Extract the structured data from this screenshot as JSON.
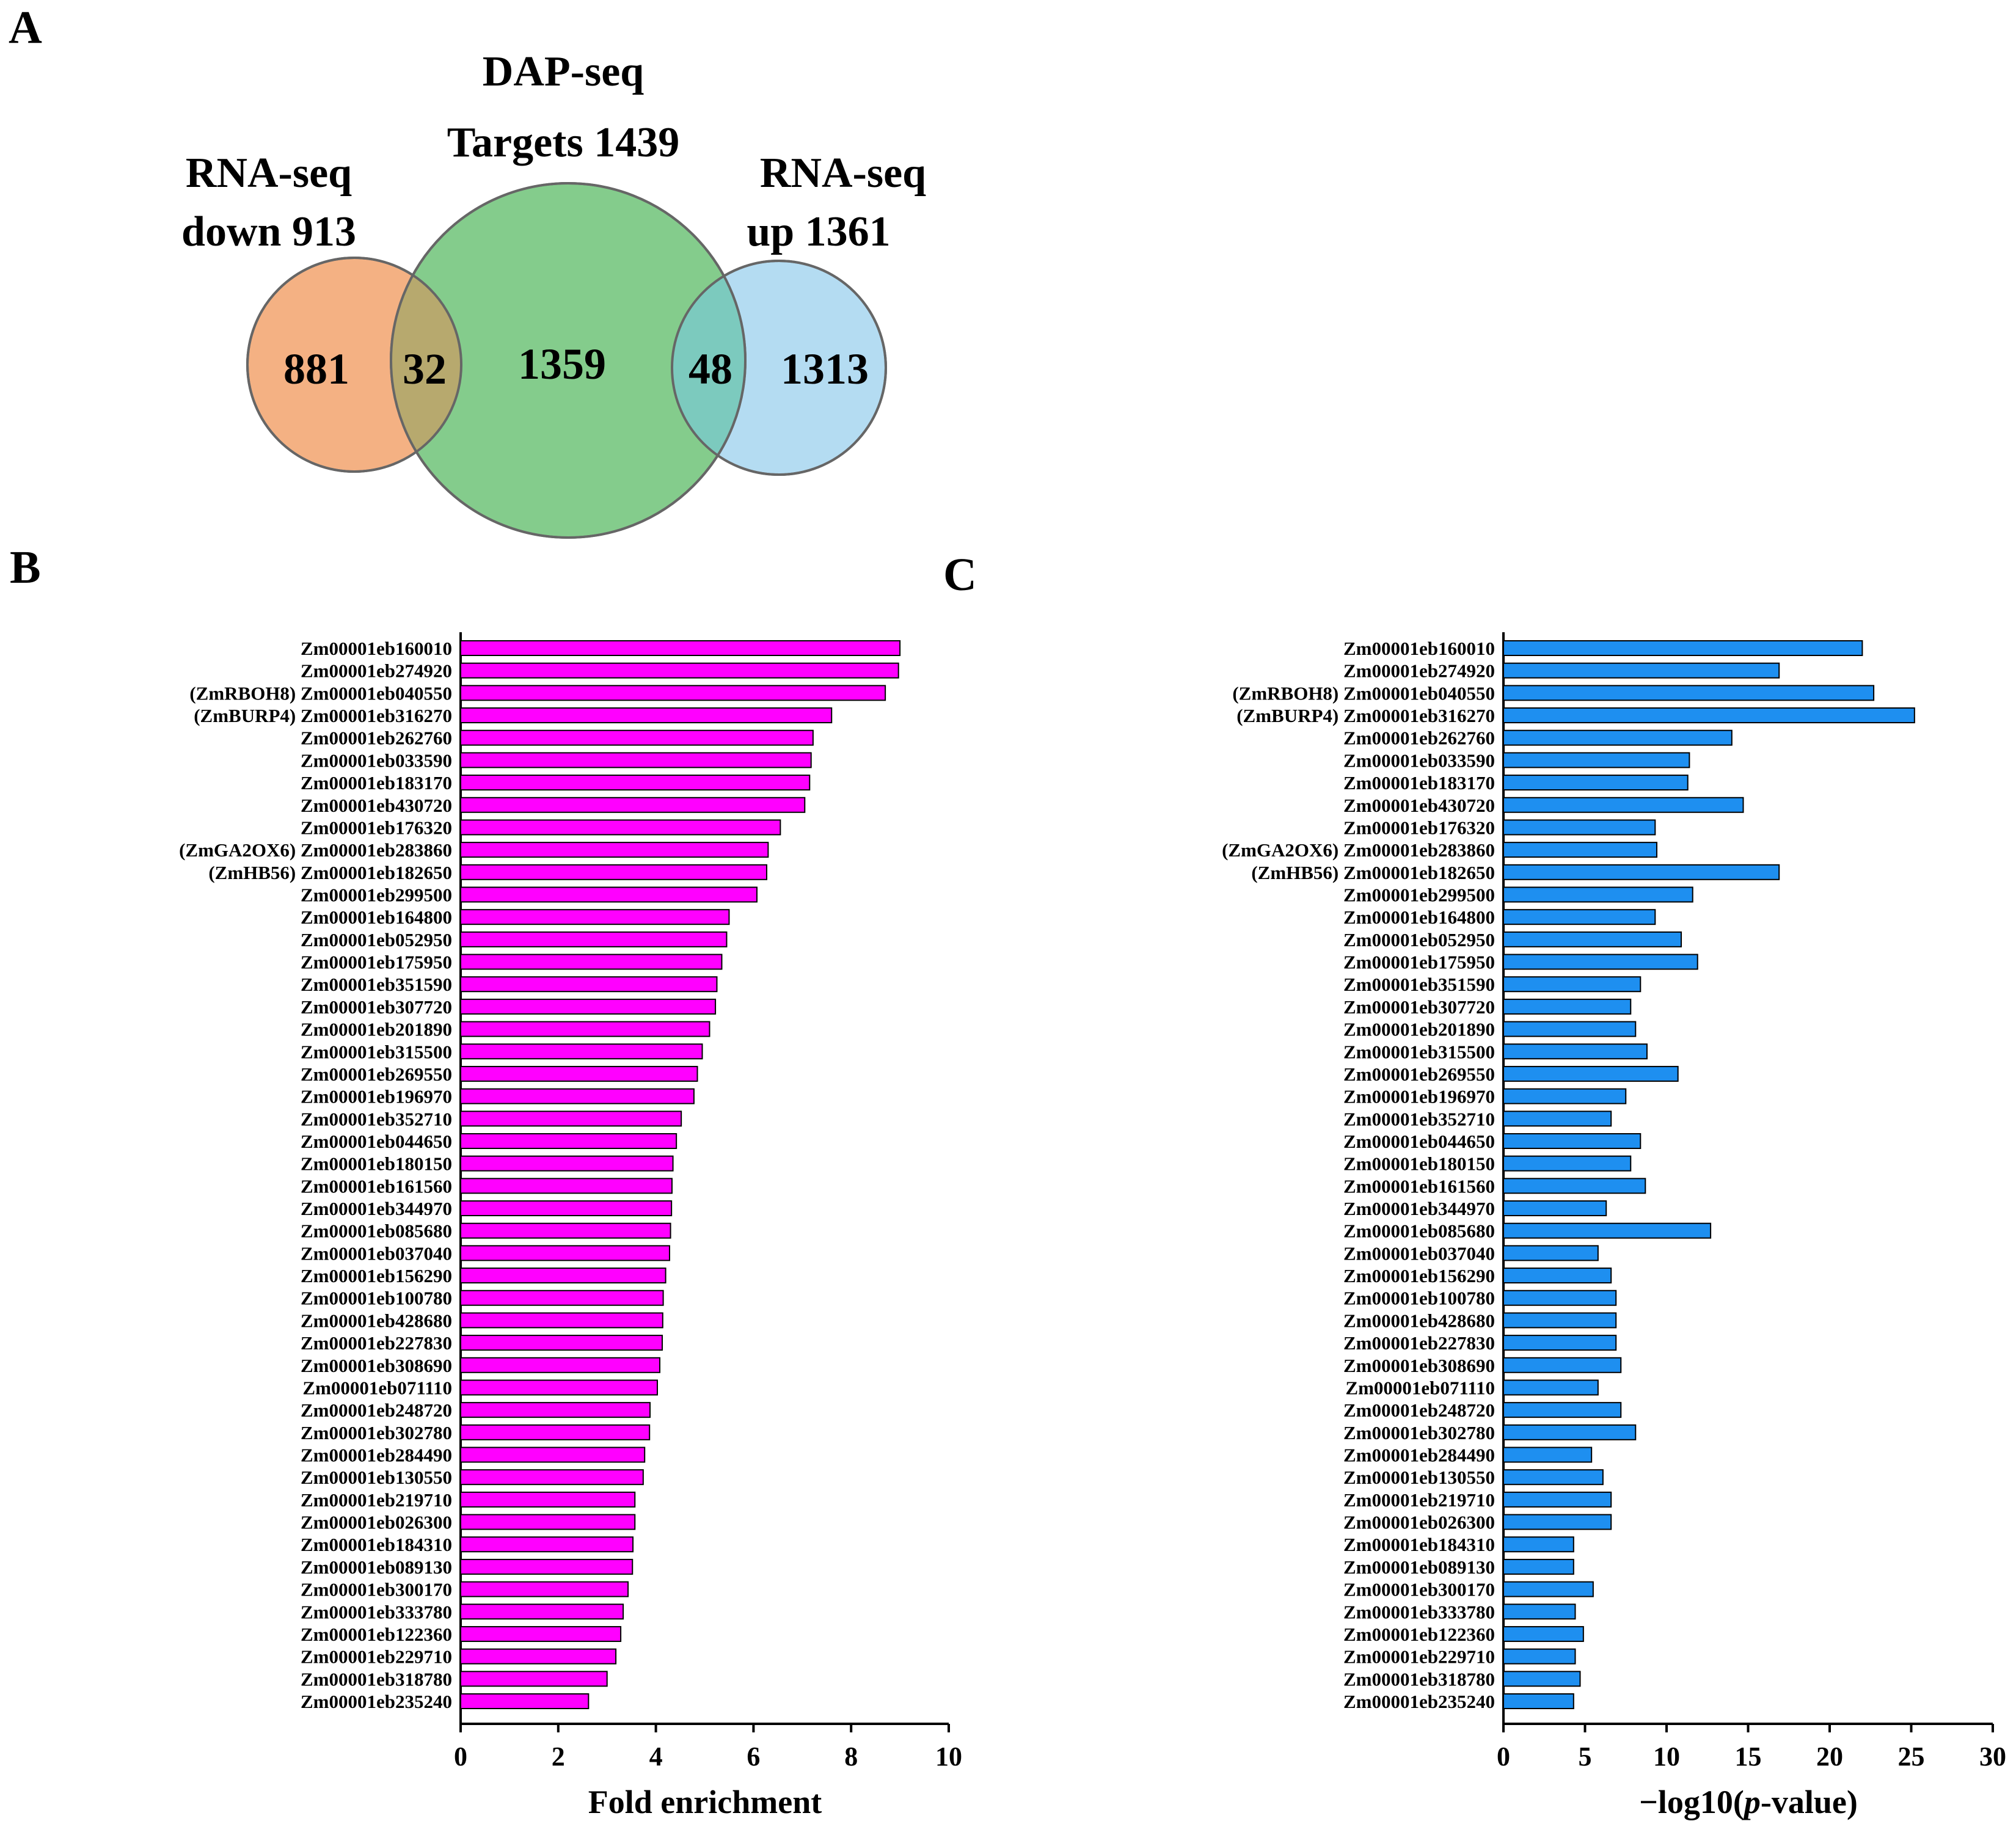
{
  "panels": {
    "a": "A",
    "b": "B",
    "c": "C"
  },
  "venn": {
    "left_title_line1": "RNA-seq",
    "left_title_line2": "down 913",
    "center_title_line1": "DAP-seq",
    "center_title_line2": "Targets 1439",
    "right_title_line1": "RNA-seq",
    "right_title_line2": "up 1361",
    "counts": {
      "down_only": "881",
      "down_and_dap": "32",
      "dap_only": "1359",
      "dap_and_up": "48",
      "up_only": "1313"
    },
    "colors": {
      "down": "#f4b183",
      "dap": "#84cc8c",
      "up": "#b4dcf2",
      "down_dap": "#b7a96e",
      "dap_up": "#7ccabe",
      "outline": "#666666"
    }
  },
  "chart_data": [
    {
      "type": "bar",
      "orientation": "horizontal",
      "title": "",
      "xlabel": "Fold enrichment",
      "ylabel": "",
      "xlim": [
        0,
        10
      ],
      "xticks": [
        0,
        2,
        4,
        6,
        8,
        10
      ],
      "color": "#ff00ff",
      "categories": [
        "Zm00001eb160010",
        "Zm00001eb274920",
        "(ZmRBOH8) Zm00001eb040550",
        "(ZmBURP4) Zm00001eb316270",
        "Zm00001eb262760",
        "Zm00001eb033590",
        "Zm00001eb183170",
        "Zm00001eb430720",
        "Zm00001eb176320",
        "(ZmGA2OX6) Zm00001eb283860",
        "(ZmHB56) Zm00001eb182650",
        "Zm00001eb299500",
        "Zm00001eb164800",
        "Zm00001eb052950",
        "Zm00001eb175950",
        "Zm00001eb351590",
        "Zm00001eb307720",
        "Zm00001eb201890",
        "Zm00001eb315500",
        "Zm00001eb269550",
        "Zm00001eb196970",
        "Zm00001eb352710",
        "Zm00001eb044650",
        "Zm00001eb180150",
        "Zm00001eb161560",
        "Zm00001eb344970",
        "Zm00001eb085680",
        "Zm00001eb037040",
        "Zm00001eb156290",
        "Zm00001eb100780",
        "Zm00001eb428680",
        "Zm00001eb227830",
        "Zm00001eb308690",
        "Zm00001eb071110",
        "Zm00001eb248720",
        "Zm00001eb302780",
        "Zm00001eb284490",
        "Zm00001eb130550",
        "Zm00001eb219710",
        "Zm00001eb026300",
        "Zm00001eb184310",
        "Zm00001eb089130",
        "Zm00001eb300170",
        "Zm00001eb333780",
        "Zm00001eb122360",
        "Zm00001eb229710",
        "Zm00001eb318780",
        "Zm00001eb235240"
      ],
      "values": [
        9.0,
        8.97,
        8.7,
        7.6,
        7.22,
        7.18,
        7.15,
        7.05,
        6.55,
        6.3,
        6.27,
        6.07,
        5.5,
        5.45,
        5.35,
        5.25,
        5.22,
        5.1,
        4.95,
        4.85,
        4.78,
        4.52,
        4.42,
        4.35,
        4.33,
        4.32,
        4.3,
        4.28,
        4.2,
        4.15,
        4.14,
        4.13,
        4.08,
        4.03,
        3.88,
        3.87,
        3.77,
        3.74,
        3.57,
        3.57,
        3.53,
        3.52,
        3.43,
        3.33,
        3.28,
        3.18,
        3.0,
        2.62
      ]
    },
    {
      "type": "bar",
      "orientation": "horizontal",
      "title": "",
      "xlabel": "−log10(p-value)",
      "xlabel_prefix": "−log10(",
      "xlabel_italic": "p",
      "xlabel_suffix": "-value)",
      "ylabel": "",
      "xlim": [
        0,
        30
      ],
      "xticks": [
        0,
        5,
        10,
        15,
        20,
        25,
        30
      ],
      "color": "#1e8ff0",
      "categories": [
        "Zm00001eb160010",
        "Zm00001eb274920",
        "(ZmRBOH8) Zm00001eb040550",
        "(ZmBURP4) Zm00001eb316270",
        "Zm00001eb262760",
        "Zm00001eb033590",
        "Zm00001eb183170",
        "Zm00001eb430720",
        "Zm00001eb176320",
        "(ZmGA2OX6) Zm00001eb283860",
        "(ZmHB56) Zm00001eb182650",
        "Zm00001eb299500",
        "Zm00001eb164800",
        "Zm00001eb052950",
        "Zm00001eb175950",
        "Zm00001eb351590",
        "Zm00001eb307720",
        "Zm00001eb201890",
        "Zm00001eb315500",
        "Zm00001eb269550",
        "Zm00001eb196970",
        "Zm00001eb352710",
        "Zm00001eb044650",
        "Zm00001eb180150",
        "Zm00001eb161560",
        "Zm00001eb344970",
        "Zm00001eb085680",
        "Zm00001eb037040",
        "Zm00001eb156290",
        "Zm00001eb100780",
        "Zm00001eb428680",
        "Zm00001eb227830",
        "Zm00001eb308690",
        "Zm00001eb071110",
        "Zm00001eb248720",
        "Zm00001eb302780",
        "Zm00001eb284490",
        "Zm00001eb130550",
        "Zm00001eb219710",
        "Zm00001eb026300",
        "Zm00001eb184310",
        "Zm00001eb089130",
        "Zm00001eb300170",
        "Zm00001eb333780",
        "Zm00001eb122360",
        "Zm00001eb229710",
        "Zm00001eb318780",
        "Zm00001eb235240"
      ],
      "values": [
        22.0,
        16.9,
        22.7,
        25.2,
        14.0,
        11.4,
        11.3,
        14.7,
        9.3,
        9.4,
        16.9,
        11.6,
        9.3,
        10.9,
        11.9,
        8.4,
        7.8,
        8.1,
        8.8,
        10.7,
        7.5,
        6.6,
        8.4,
        7.8,
        8.7,
        6.3,
        12.7,
        5.8,
        6.6,
        6.9,
        6.9,
        6.9,
        7.2,
        5.8,
        7.2,
        8.1,
        5.4,
        6.1,
        6.6,
        6.6,
        4.3,
        4.3,
        5.5,
        4.4,
        4.9,
        4.4,
        4.7,
        4.3
      ]
    }
  ]
}
